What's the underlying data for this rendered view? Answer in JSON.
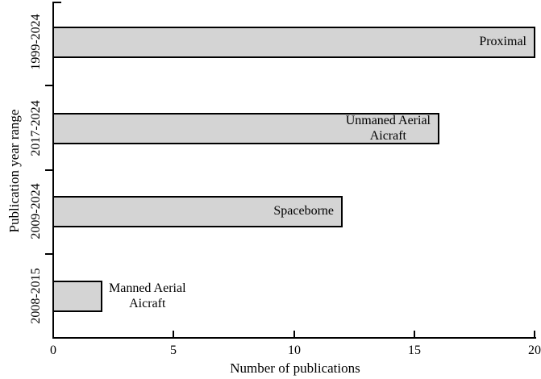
{
  "chart_data": {
    "type": "bar",
    "orientation": "horizontal",
    "title": "",
    "xlabel": "Number of publications",
    "ylabel": "Publication year range",
    "xlim": [
      0,
      20
    ],
    "x_ticks": [
      "0",
      "5",
      "10",
      "15",
      "20"
    ],
    "grid": false,
    "legend": false,
    "categories": [
      "1999-2024",
      "2017-2024",
      "2009-2024",
      "2008-2015"
    ],
    "values": [
      20,
      16,
      12,
      2
    ],
    "bar_labels": [
      [
        "Proximal"
      ],
      [
        "Unmaned Aerial",
        "Aicraft"
      ],
      [
        "Spaceborne"
      ],
      [
        "Manned Aerial",
        "Aicraft"
      ]
    ],
    "bar_label_placement": [
      "inside-right",
      "inside-right",
      "inside-right",
      "outside-right"
    ],
    "bar_fill_color": "#d4d4d4",
    "bar_border_color": "#000000",
    "axis_color": "#000000",
    "background_color": "#ffffff"
  }
}
